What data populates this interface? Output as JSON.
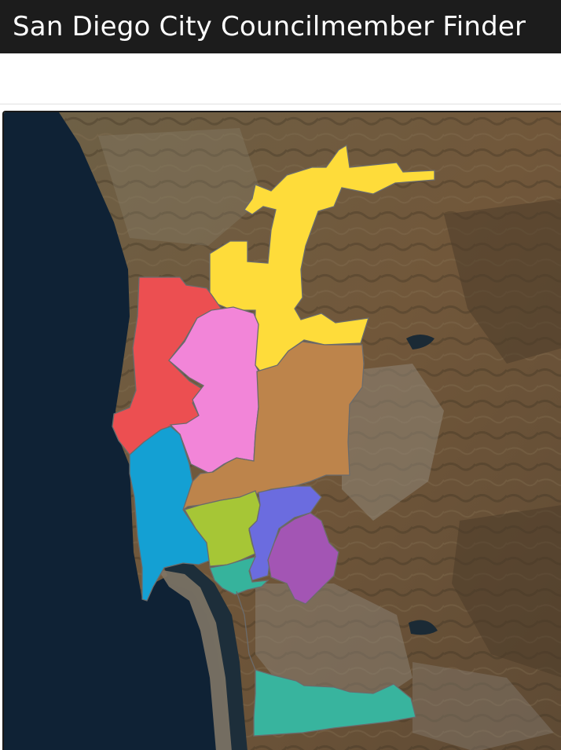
{
  "app": {
    "title": "San Diego City Councilmember Finder"
  },
  "map": {
    "basemap": "satellite-imagery",
    "colors": {
      "ocean": "#0f2235",
      "land": "#6d5a40",
      "land_dark": "#4a3c2a",
      "urban": "#9a9082",
      "bay": "#1d2e3a"
    },
    "districts": [
      {
        "name": "district-1",
        "color": "#ec4f51"
      },
      {
        "name": "district-2",
        "color": "#14a0d3"
      },
      {
        "name": "district-3",
        "color": "#36b39c"
      },
      {
        "name": "district-4",
        "color": "#a355b4"
      },
      {
        "name": "district-5",
        "color": "#fedc3a"
      },
      {
        "name": "district-6",
        "color": "#f285d8"
      },
      {
        "name": "district-7",
        "color": "#bd844b"
      },
      {
        "name": "district-8",
        "color": "#38b49e"
      },
      {
        "name": "district-9",
        "color": "#6b6cdf"
      },
      {
        "name": "district-10",
        "color": "#a6c636"
      }
    ]
  }
}
